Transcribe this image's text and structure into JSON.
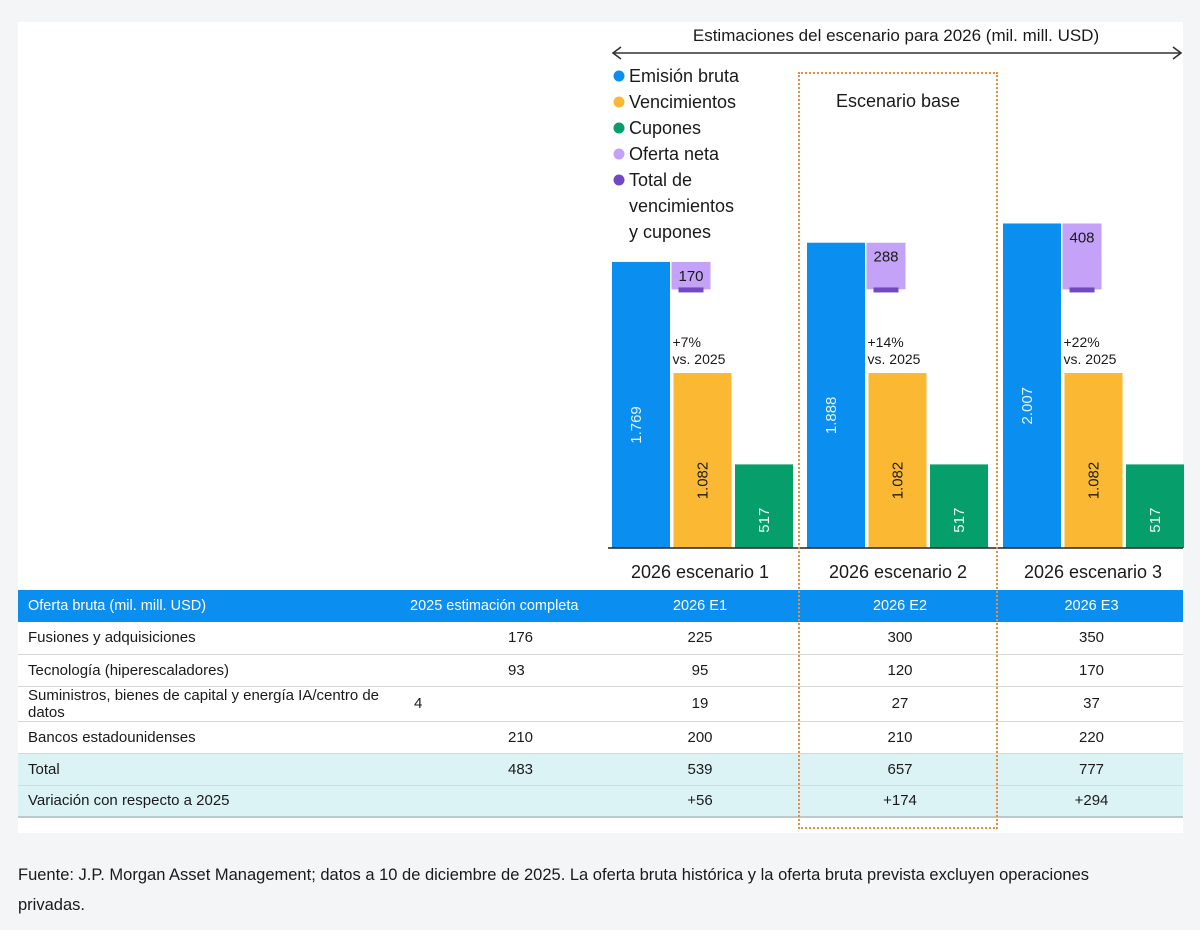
{
  "colors": {
    "gross": "#0a8ff0",
    "maturities": "#fbb833",
    "coupons": "#069e6a",
    "net": "#c3a2f7",
    "total_mc": "#7248c4",
    "table_header": "#0a8ff0",
    "highlight_row": "#dcf3f6",
    "base_box": "#f08a3c"
  },
  "chart_data": {
    "type": "bar",
    "title": "Estimaciones del escenario para 2026 (mil. mill. USD)",
    "categories": [
      "2026 escenario 1",
      "2026 escenario 2",
      "2026 escenario 3"
    ],
    "base_scenario_label": "Escenario base",
    "base_scenario_index": 1,
    "series": [
      {
        "key": "gross",
        "name": "Emisión bruta",
        "values": [
          1769,
          1888,
          2007
        ],
        "labels": [
          "1.769",
          "1.888",
          "2.007"
        ]
      },
      {
        "key": "maturities",
        "name": "Vencimientos",
        "values": [
          1082,
          1082,
          1082
        ],
        "labels": [
          "1.082",
          "1.082",
          "1.082"
        ]
      },
      {
        "key": "coupons",
        "name": "Cupones",
        "values": [
          517,
          517,
          517
        ],
        "labels": [
          "517",
          "517",
          "517"
        ]
      },
      {
        "key": "net",
        "name": "Oferta neta",
        "values": [
          170,
          288,
          408
        ],
        "labels": [
          "170",
          "288",
          "408"
        ]
      },
      {
        "key": "total_mc",
        "name": "Total de vencimientos y cupones",
        "values": [
          1599,
          1599,
          1599
        ]
      }
    ],
    "legend": [
      "Emisión bruta",
      "Vencimientos",
      "Cupones",
      "Oferta neta",
      "Total de vencimientos y cupones"
    ],
    "legend_lines": [
      [
        "Emisión bruta"
      ],
      [
        "Vencimientos"
      ],
      [
        "Cupones"
      ],
      [
        "Oferta neta"
      ],
      [
        "Total de",
        "vencimientos",
        "y cupones"
      ]
    ],
    "legend_position": "top-left",
    "annotations": [
      {
        "line1": "+7%",
        "line2": "vs. 2025"
      },
      {
        "line1": "+14%",
        "line2": "vs. 2025"
      },
      {
        "line1": "+22%",
        "line2": "vs. 2025"
      }
    ],
    "xlabel": "",
    "ylabel": "",
    "ylim": [
      0,
      2100
    ],
    "grid": false
  },
  "table": {
    "headers": [
      "Oferta bruta (mil. mill. USD)",
      "2025 estimación completa",
      "2026 E1",
      "2026 E2",
      "2026 E3"
    ],
    "rows": [
      {
        "label": "Fusiones y adquisiciones",
        "values": [
          "176",
          "225",
          "300",
          "350"
        ]
      },
      {
        "label": "Tecnología (hiperescaladores)",
        "values": [
          "93",
          "95",
          "120",
          "170"
        ]
      },
      {
        "label": "Suministros, bienes de capital y energía IA/centro de datos",
        "values": [
          "4",
          "19",
          "27",
          "37"
        ]
      },
      {
        "label": "Bancos estadounidenses",
        "values": [
          "210",
          "200",
          "210",
          "220"
        ]
      }
    ],
    "total": {
      "label": "Total",
      "values": [
        "483",
        "539",
        "657",
        "777"
      ]
    },
    "change": {
      "label": "Variación con respecto a 2025",
      "values": [
        "",
        "+56",
        "+174",
        "+294"
      ]
    }
  },
  "footer": {
    "source": "Fuente: J.P. Morgan Asset Management; datos a 10 de diciembre de 2025. La oferta bruta histórica y la oferta bruta prevista excluyen operaciones privadas."
  }
}
